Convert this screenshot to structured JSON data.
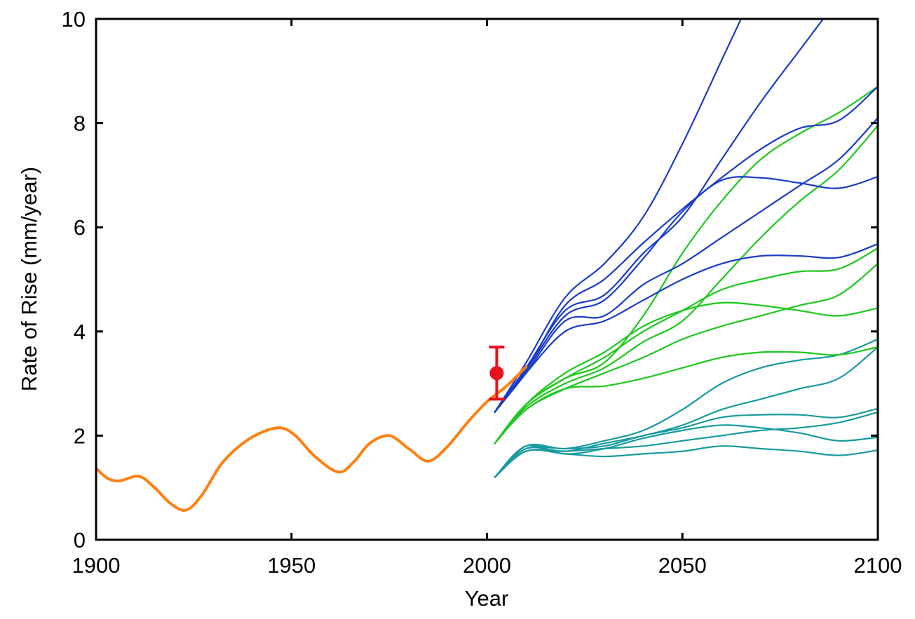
{
  "chart_data": {
    "type": "line",
    "title": "",
    "xlabel": "Year",
    "ylabel": "Rate of Rise (mm/year)",
    "xlim": [
      1900,
      2100
    ],
    "ylim": [
      0,
      10
    ],
    "x_ticks": [
      "1900",
      "1950",
      "2000",
      "2050",
      "2100"
    ],
    "y_ticks": [
      "0",
      "2",
      "4",
      "6",
      "8",
      "10"
    ],
    "grid": false,
    "legend": "none",
    "colors": {
      "historical": "#ff8010",
      "observation": "#e8101a",
      "high": "#1a3cc8",
      "mid": "#1cc81c",
      "low": "#189aa0"
    },
    "observation": {
      "x": 2002.5,
      "y": 3.2,
      "y_low": 2.7,
      "y_high": 3.7
    },
    "series": [
      {
        "name": "historical",
        "group": "historical",
        "x": [
          1900,
          1903,
          1906,
          1911,
          1915,
          1919,
          1923,
          1927,
          1932,
          1937,
          1942,
          1947,
          1951,
          1956,
          1962,
          1966,
          1970,
          1975,
          1980,
          1985,
          1990,
          1995,
          2000,
          2005,
          2010
        ],
        "y": [
          1.37,
          1.18,
          1.13,
          1.22,
          1.0,
          0.7,
          0.57,
          0.85,
          1.45,
          1.82,
          2.05,
          2.15,
          2.0,
          1.6,
          1.3,
          1.5,
          1.85,
          2.0,
          1.75,
          1.51,
          1.8,
          2.25,
          2.65,
          2.95,
          3.32
        ]
      },
      {
        "name": "high-1",
        "group": "high",
        "x": [
          2002,
          2010,
          2020,
          2030,
          2040,
          2050,
          2060,
          2065
        ],
        "y": [
          2.45,
          3.4,
          4.65,
          5.3,
          6.2,
          7.6,
          9.2,
          10.0
        ]
      },
      {
        "name": "high-2",
        "group": "high",
        "x": [
          2002,
          2010,
          2020,
          2030,
          2040,
          2050,
          2060,
          2070,
          2080,
          2086
        ],
        "y": [
          2.45,
          3.3,
          4.4,
          4.7,
          5.5,
          6.2,
          7.3,
          8.4,
          9.4,
          10.0
        ]
      },
      {
        "name": "high-3",
        "group": "high",
        "x": [
          2002,
          2010,
          2020,
          2030,
          2040,
          2050,
          2060,
          2070,
          2080,
          2090,
          2100
        ],
        "y": [
          2.45,
          3.25,
          4.5,
          5.0,
          5.7,
          6.35,
          6.95,
          7.5,
          7.9,
          8.05,
          8.7
        ]
      },
      {
        "name": "high-4",
        "group": "high",
        "x": [
          2002,
          2010,
          2020,
          2030,
          2040,
          2050,
          2060,
          2070,
          2080,
          2090,
          2100
        ],
        "y": [
          2.45,
          3.25,
          4.3,
          4.6,
          5.4,
          6.3,
          6.9,
          6.95,
          6.85,
          6.75,
          6.97
        ]
      },
      {
        "name": "high-5",
        "group": "high",
        "x": [
          2002,
          2010,
          2020,
          2030,
          2040,
          2050,
          2060,
          2070,
          2080,
          2090,
          2100
        ],
        "y": [
          2.45,
          3.2,
          4.2,
          4.3,
          4.9,
          5.3,
          5.8,
          6.3,
          6.8,
          7.3,
          8.1
        ]
      },
      {
        "name": "high-6",
        "group": "high",
        "x": [
          2002,
          2010,
          2020,
          2030,
          2040,
          2050,
          2060,
          2070,
          2080,
          2090,
          2100
        ],
        "y": [
          2.45,
          3.2,
          4.0,
          4.2,
          4.6,
          5.0,
          5.3,
          5.45,
          5.45,
          5.42,
          5.68
        ]
      },
      {
        "name": "mid-1",
        "group": "mid",
        "x": [
          2002,
          2010,
          2020,
          2030,
          2040,
          2050,
          2060,
          2070,
          2080,
          2090,
          2100
        ],
        "y": [
          1.85,
          2.6,
          3.1,
          3.4,
          4.3,
          5.5,
          6.5,
          7.3,
          7.8,
          8.2,
          8.7
        ]
      },
      {
        "name": "mid-2",
        "group": "mid",
        "x": [
          2002,
          2010,
          2020,
          2030,
          2040,
          2050,
          2060,
          2070,
          2080,
          2090,
          2100
        ],
        "y": [
          1.85,
          2.55,
          3.0,
          3.3,
          3.8,
          4.2,
          5.0,
          5.8,
          6.5,
          7.1,
          7.95
        ]
      },
      {
        "name": "mid-3",
        "group": "mid",
        "x": [
          2002,
          2010,
          2020,
          2030,
          2040,
          2050,
          2060,
          2070,
          2080,
          2090,
          2100
        ],
        "y": [
          1.85,
          2.6,
          3.1,
          3.5,
          4.0,
          4.4,
          4.8,
          5.0,
          5.15,
          5.2,
          5.6
        ]
      },
      {
        "name": "mid-4",
        "group": "mid",
        "x": [
          2002,
          2010,
          2020,
          2030,
          2040,
          2050,
          2060,
          2070,
          2080,
          2090,
          2100
        ],
        "y": [
          1.85,
          2.5,
          2.9,
          3.2,
          3.5,
          3.85,
          4.1,
          4.3,
          4.5,
          4.7,
          5.3
        ]
      },
      {
        "name": "mid-5",
        "group": "mid",
        "x": [
          2002,
          2010,
          2020,
          2030,
          2040,
          2050,
          2060,
          2070,
          2080,
          2090,
          2100
        ],
        "y": [
          1.85,
          2.6,
          3.2,
          3.6,
          4.1,
          4.4,
          4.55,
          4.5,
          4.4,
          4.3,
          4.45
        ]
      },
      {
        "name": "mid-6",
        "group": "mid",
        "x": [
          2002,
          2010,
          2020,
          2030,
          2040,
          2050,
          2060,
          2070,
          2080,
          2090,
          2100
        ],
        "y": [
          1.85,
          2.5,
          2.9,
          2.95,
          3.1,
          3.3,
          3.5,
          3.6,
          3.6,
          3.55,
          3.7
        ]
      },
      {
        "name": "low-1",
        "group": "low",
        "x": [
          2002,
          2010,
          2020,
          2030,
          2040,
          2050,
          2060,
          2070,
          2080,
          2090,
          2100
        ],
        "y": [
          1.2,
          1.8,
          1.75,
          1.9,
          2.1,
          2.5,
          3.0,
          3.3,
          3.45,
          3.55,
          3.85
        ]
      },
      {
        "name": "low-2",
        "group": "low",
        "x": [
          2002,
          2010,
          2020,
          2030,
          2040,
          2050,
          2060,
          2070,
          2080,
          2090,
          2100
        ],
        "y": [
          1.2,
          1.75,
          1.7,
          1.85,
          2.0,
          2.2,
          2.5,
          2.7,
          2.9,
          3.1,
          3.7
        ]
      },
      {
        "name": "low-3",
        "group": "low",
        "x": [
          2002,
          2010,
          2020,
          2030,
          2040,
          2050,
          2060,
          2070,
          2080,
          2090,
          2100
        ],
        "y": [
          1.2,
          1.75,
          1.75,
          1.8,
          2.0,
          2.15,
          2.35,
          2.4,
          2.4,
          2.35,
          2.52
        ]
      },
      {
        "name": "low-4",
        "group": "low",
        "x": [
          2002,
          2010,
          2020,
          2030,
          2040,
          2050,
          2060,
          2070,
          2080,
          2090,
          2100
        ],
        "y": [
          1.2,
          1.7,
          1.7,
          1.75,
          1.8,
          1.9,
          2.0,
          2.1,
          2.15,
          2.25,
          2.45
        ]
      },
      {
        "name": "low-5",
        "group": "low",
        "x": [
          2002,
          2010,
          2020,
          2030,
          2040,
          2050,
          2060,
          2070,
          2080,
          2090,
          2100
        ],
        "y": [
          1.2,
          1.8,
          1.65,
          1.75,
          1.95,
          2.1,
          2.2,
          2.15,
          2.05,
          1.9,
          1.97
        ]
      },
      {
        "name": "low-6",
        "group": "low",
        "x": [
          2002,
          2010,
          2020,
          2030,
          2040,
          2050,
          2060,
          2070,
          2080,
          2090,
          2100
        ],
        "y": [
          1.2,
          1.7,
          1.65,
          1.6,
          1.65,
          1.7,
          1.8,
          1.75,
          1.7,
          1.62,
          1.72
        ]
      }
    ]
  }
}
